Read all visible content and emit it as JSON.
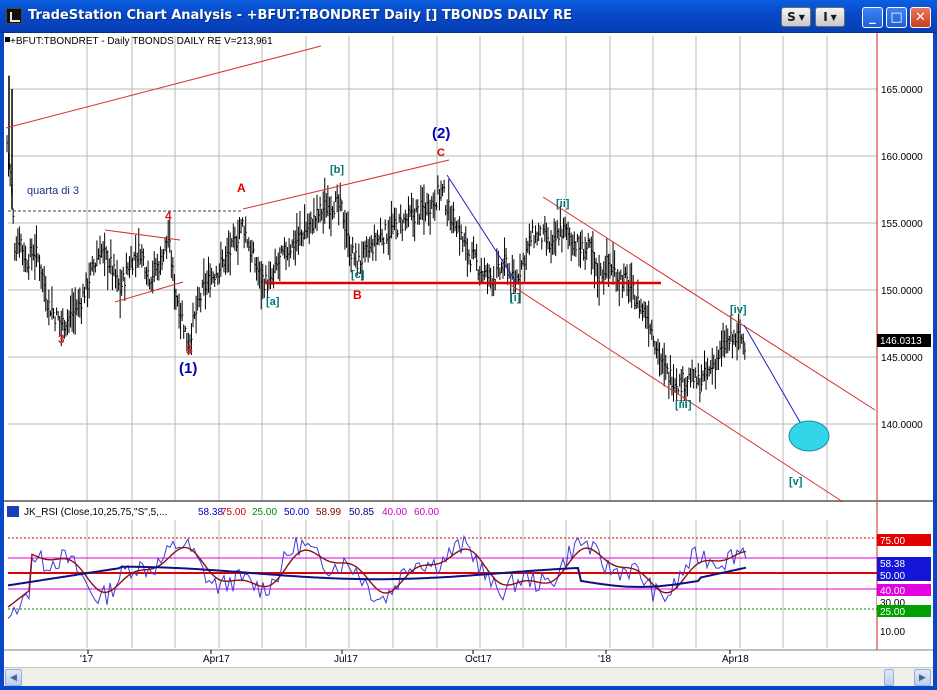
{
  "window": {
    "title": "TradeStation Chart Analysis - +BFUT:TBONDRET Daily [] TBONDS DAILY RE",
    "s_button": "S",
    "i_button": "I"
  },
  "price_panel": {
    "header": "+BFUT:TBONDRET - Daily  TBONDS DAILY RE  V=213,961",
    "last_price": "146.0313",
    "y_ticks": [
      "165.0000",
      "160.0000",
      "155.0000",
      "150.0000",
      "145.0000",
      "140.0000"
    ],
    "annotations": {
      "quarta_di_3": "quarta di 3",
      "wave_3": "3",
      "wave_4": "4",
      "wave_5": "5",
      "wave_1_big": "(1)",
      "wave_2_big": "(2)",
      "wave_A": "A",
      "wave_B": "B",
      "wave_C": "C",
      "wave_a": "[a]",
      "wave_b": "[b]",
      "wave_c": "[c]",
      "wave_i": "[i]",
      "wave_ii": "[ii]",
      "wave_iii": "[iii]",
      "wave_iv": "[iv]",
      "wave_v": "[v]"
    }
  },
  "rsi_panel": {
    "indicator": "JK_RSI (Close,10,25,75,\"S\",5,...",
    "readouts": [
      {
        "text": "58.38",
        "color": "#0000cc"
      },
      {
        "text": "75.00",
        "color": "#cc0000"
      },
      {
        "text": "25.00",
        "color": "#008800"
      },
      {
        "text": "50.00",
        "color": "#0000cc"
      },
      {
        "text": "58.99",
        "color": "#880000"
      },
      {
        "text": "50.85",
        "color": "#000088"
      },
      {
        "text": "40.00",
        "color": "#cc00cc"
      },
      {
        "text": "60.00",
        "color": "#cc00cc"
      }
    ],
    "badges": [
      {
        "text": "75.00",
        "bg": "#e00000",
        "fg": "#ffffff"
      },
      {
        "text": "58.38",
        "bg": "#1515d8",
        "fg": "#ffffff"
      },
      {
        "text": "50.00",
        "bg": "#1515d8",
        "fg": "#ffffff"
      },
      {
        "text": "40.00",
        "bg": "#e000e0",
        "fg": "#ffffff"
      },
      {
        "text": "30.00",
        "bg": "#ffffff",
        "fg": "#000000"
      },
      {
        "text": "25.00",
        "bg": "#00a000",
        "fg": "#ffffff"
      }
    ],
    "y_tick_10": "10.00"
  },
  "x_axis": {
    "labels": [
      "'17",
      "Apr17",
      "Jul17",
      "Oct17",
      "'18",
      "Apr18"
    ]
  },
  "colors": {
    "accent_blue": "#0848c6",
    "price_bars": "#000000",
    "wave_red": "#e00000",
    "wave_navy": "#0000b0",
    "wave_teal": "#007878",
    "target_fill": "#33d6e6"
  },
  "icons": {
    "app": "chart-icon",
    "minimize": "minimize-icon",
    "maximize": "maximize-icon",
    "close": "close-icon"
  }
}
